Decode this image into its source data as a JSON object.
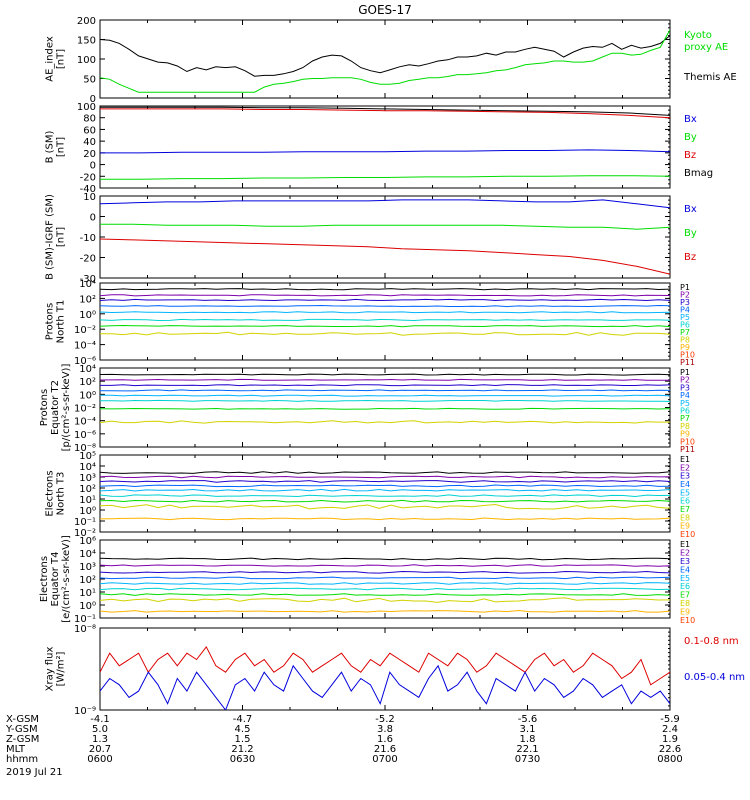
{
  "title": "GOES-17",
  "colors": {
    "black": "#000000",
    "blue": "#0000dd",
    "green": "#00dd00",
    "red": "#dd0000",
    "P": [
      "#000000",
      "#7f00aa",
      "#2200cc",
      "#0066ff",
      "#00b4ff",
      "#00d2d2",
      "#00dc00",
      "#d2d200",
      "#ffb400",
      "#ff3c00",
      "#aa0000"
    ]
  },
  "chart_data": [
    {
      "type": "line",
      "ylabel": [
        "AE_index",
        "[nT]"
      ],
      "yticks": [
        "200",
        "150",
        "100",
        "50",
        "0"
      ],
      "ylim": [
        0,
        200
      ],
      "legend": [
        {
          "label": "Kyoto",
          "color": "green"
        },
        {
          "label": "proxy AE",
          "color": "green"
        },
        {
          "label": "Themis AE",
          "color": "black"
        }
      ],
      "series": [
        {
          "name": "Themis AE",
          "color": "black",
          "values": [
            150,
            148,
            140,
            125,
            108,
            100,
            92,
            90,
            82,
            68,
            78,
            72,
            80,
            78,
            80,
            70,
            56,
            58,
            58,
            62,
            68,
            78,
            95,
            105,
            110,
            108,
            95,
            78,
            70,
            65,
            72,
            80,
            85,
            82,
            88,
            95,
            98,
            105,
            105,
            108,
            115,
            110,
            118,
            118,
            125,
            130,
            125,
            120,
            105,
            118,
            128,
            132,
            130,
            140,
            125,
            135,
            128,
            132,
            140,
            160
          ]
        },
        {
          "name": "Kyoto proxy AE",
          "color": "green",
          "values": [
            52,
            48,
            35,
            25,
            15,
            15,
            15,
            15,
            15,
            15,
            15,
            15,
            15,
            15,
            15,
            15,
            15,
            28,
            35,
            38,
            42,
            48,
            50,
            50,
            52,
            52,
            52,
            48,
            40,
            35,
            35,
            38,
            45,
            48,
            52,
            52,
            55,
            60,
            60,
            62,
            65,
            70,
            72,
            78,
            85,
            88,
            90,
            95,
            95,
            92,
            92,
            95,
            105,
            115,
            115,
            110,
            112,
            122,
            130,
            175
          ]
        }
      ]
    },
    {
      "type": "line",
      "ylabel": [
        "B (SM)",
        "[nT]"
      ],
      "yticks": [
        "100",
        "80",
        "60",
        "40",
        "20",
        "0",
        "-20",
        "-40"
      ],
      "ylim": [
        -40,
        100
      ],
      "legend": [
        {
          "label": "Bx",
          "color": "blue"
        },
        {
          "label": "By",
          "color": "green"
        },
        {
          "label": "Bz",
          "color": "red"
        },
        {
          "label": "Bmag",
          "color": "black"
        }
      ],
      "series": [
        {
          "name": "Bmag",
          "color": "black",
          "values": [
            98,
            98,
            98,
            98,
            97,
            97,
            96,
            95,
            94,
            93,
            92,
            91,
            90,
            88,
            84
          ]
        },
        {
          "name": "Bz",
          "color": "red",
          "values": [
            95,
            95,
            95,
            95,
            94,
            94,
            93,
            92,
            92,
            91,
            90,
            89,
            87,
            84,
            80
          ]
        },
        {
          "name": "Bx",
          "color": "blue",
          "values": [
            20,
            20,
            21,
            21,
            21,
            22,
            22,
            22,
            23,
            23,
            24,
            24,
            25,
            24,
            22
          ]
        },
        {
          "name": "By",
          "color": "green",
          "values": [
            -25,
            -25,
            -24,
            -24,
            -23,
            -23,
            -22,
            -22,
            -21,
            -21,
            -20,
            -20,
            -19,
            -19,
            -20
          ]
        }
      ]
    },
    {
      "type": "line",
      "ylabel": [
        "B (SM)-IGRF (SM)",
        "[nT]"
      ],
      "yticks": [
        "10",
        "0",
        "-10",
        "-20",
        "-30"
      ],
      "ylim": [
        -30,
        12
      ],
      "legend": [
        {
          "label": "Bx",
          "color": "blue"
        },
        {
          "label": "By",
          "color": "green"
        },
        {
          "label": "Bz",
          "color": "red"
        }
      ],
      "series": [
        {
          "name": "Bx",
          "color": "blue",
          "values": [
            8,
            8.5,
            9,
            9,
            9.5,
            9.5,
            9.5,
            9.5,
            9.5,
            10,
            10,
            10,
            9.5,
            9,
            9,
            10,
            8,
            6
          ]
        },
        {
          "name": "By",
          "color": "green",
          "values": [
            -2.5,
            -2.5,
            -3,
            -3,
            -3,
            -3.5,
            -3.5,
            -3,
            -3,
            -3,
            -3,
            -3,
            -3,
            -3.5,
            -4,
            -4,
            -5,
            -4
          ]
        },
        {
          "name": "Bz",
          "color": "red",
          "values": [
            -10,
            -10.5,
            -11,
            -11.5,
            -12,
            -12.5,
            -13,
            -13.5,
            -14,
            -15,
            -15.5,
            -16,
            -17,
            -18,
            -19,
            -21,
            -24,
            -28
          ]
        }
      ]
    },
    {
      "type": "line",
      "ylabel": [
        "Protons",
        "North T1"
      ],
      "yticks": [
        "10⁴",
        "10²",
        "10⁰",
        "10⁻²",
        "10⁻⁴",
        "10⁻⁶"
      ],
      "ylim": [
        -6,
        4
      ],
      "log": true,
      "channels": [
        "P1",
        "P2",
        "P3",
        "P4",
        "P5",
        "P6",
        "P7",
        "P8",
        "P9",
        "P10",
        "P11"
      ],
      "levels": [
        3.2,
        2.4,
        1.8,
        1.0,
        0.2,
        -0.8,
        -1.6,
        -2.6,
        null,
        null,
        null
      ]
    },
    {
      "type": "line",
      "ylabel": [
        "Protons",
        "Equator T2",
        "[p/(cm²-s-sr-keV)]"
      ],
      "yticks": [
        "10⁴",
        "10²",
        "10⁰",
        "10⁻²",
        "10⁻⁴",
        "10⁻⁶",
        "10⁻⁸"
      ],
      "ylim": [
        -8,
        4
      ],
      "log": true,
      "channels": [
        "P1",
        "P2",
        "P3",
        "P4",
        "P5",
        "P6",
        "P7",
        "P8",
        "P9",
        "P10",
        "P11"
      ],
      "levels": [
        3.0,
        2.2,
        1.4,
        0.6,
        -0.2,
        -1.0,
        -2.2,
        -4.2,
        null,
        null,
        null
      ]
    },
    {
      "type": "line",
      "ylabel": [
        "Electrons",
        "North T3"
      ],
      "yticks": [
        "10⁵",
        "10⁴",
        "10³",
        "10²",
        "10¹",
        "10⁰",
        "10⁻¹",
        "10⁻²"
      ],
      "ylim": [
        -2,
        5
      ],
      "log": true,
      "channels": [
        "E1",
        "E2",
        "E3",
        "E4",
        "E5",
        "E6",
        "E7",
        "E8",
        "E9",
        "E10"
      ],
      "levels": [
        3.4,
        3.0,
        2.6,
        2.2,
        1.8,
        1.3,
        0.8,
        0.3,
        -0.8,
        null
      ]
    },
    {
      "type": "line",
      "ylabel": [
        "Electrons",
        "Equator T4",
        "[e/(cm²-s-sr-keV)]"
      ],
      "yticks": [
        "10⁶",
        "10⁴",
        "10³",
        "10²",
        "10¹",
        "10⁰",
        "10⁻¹"
      ],
      "ylim": [
        -1,
        6
      ],
      "log": true,
      "channels": [
        "E1",
        "E2",
        "E3",
        "E4",
        "E5",
        "E6",
        "E7",
        "E8",
        "E9",
        "E10"
      ],
      "levels": [
        4.3,
        3.7,
        3.1,
        2.6,
        2.1,
        1.6,
        1.1,
        0.6,
        -0.4,
        null
      ]
    },
    {
      "type": "line",
      "ylabel": [
        "Xray flux",
        "[W/m²]"
      ],
      "yticks": [
        "10⁻⁸",
        "10⁻⁹"
      ],
      "ylim": [
        -9.2,
        -7.9
      ],
      "log": true,
      "legend": [
        {
          "label": "0.1-0.8 nm",
          "color": "red"
        },
        {
          "label": "0.05-0.4 nm",
          "color": "blue"
        }
      ],
      "series": [
        {
          "name": "0.1-0.8 nm",
          "color": "red",
          "values": [
            -8.6,
            -8.3,
            -8.5,
            -8.4,
            -8.3,
            -8.6,
            -8.4,
            -8.3,
            -8.5,
            -8.3,
            -8.4,
            -8.2,
            -8.5,
            -8.6,
            -8.4,
            -8.3,
            -8.5,
            -8.4,
            -8.6,
            -8.5,
            -8.3,
            -8.4,
            -8.6,
            -8.5,
            -8.4,
            -8.3,
            -8.5,
            -8.6,
            -8.4,
            -8.5,
            -8.3,
            -8.4,
            -8.5,
            -8.6,
            -8.3,
            -8.4,
            -8.5,
            -8.3,
            -8.4,
            -8.6,
            -8.5,
            -8.3,
            -8.4,
            -8.5,
            -8.6,
            -8.4,
            -8.3,
            -8.5,
            -8.4,
            -8.6,
            -8.5,
            -8.3,
            -8.4,
            -8.5,
            -8.7,
            -8.6,
            -8.4,
            -8.8,
            -8.7,
            -8.6
          ]
        },
        {
          "name": "0.05-0.4 nm",
          "color": "blue",
          "values": [
            -8.9,
            -8.7,
            -8.8,
            -9.0,
            -8.9,
            -8.6,
            -8.8,
            -9.1,
            -8.7,
            -8.9,
            -8.6,
            -8.8,
            -9.0,
            -9.2,
            -8.8,
            -8.7,
            -8.9,
            -8.6,
            -8.8,
            -8.9,
            -8.5,
            -8.7,
            -8.9,
            -9.0,
            -8.8,
            -8.6,
            -8.9,
            -8.7,
            -8.8,
            -9.1,
            -8.6,
            -8.8,
            -8.9,
            -9.0,
            -8.7,
            -8.5,
            -8.9,
            -8.8,
            -8.6,
            -8.9,
            -9.1,
            -8.7,
            -8.8,
            -8.9,
            -8.6,
            -8.9,
            -8.7,
            -8.8,
            -9.0,
            -8.9,
            -8.7,
            -8.8,
            -9.0,
            -8.9,
            -8.8,
            -9.1,
            -8.9,
            -9.0,
            -8.9,
            -9.1
          ]
        }
      ]
    }
  ],
  "x_axis": {
    "row_labels": [
      "X-GSM",
      "Y-GSM",
      "Z-GSM",
      "MLT",
      "hhmm"
    ],
    "date": "2019 Jul 21",
    "columns": [
      [
        "-4.1",
        "5.0",
        "1.3",
        "20.7",
        "0600"
      ],
      [
        "-4.7",
        "4.5",
        "1.5",
        "21.2",
        "0630"
      ],
      [
        "-5.2",
        "3.8",
        "1.6",
        "21.6",
        "0700"
      ],
      [
        "-5.6",
        "3.1",
        "1.8",
        "22.1",
        "0730"
      ],
      [
        "-5.9",
        "2.4",
        "1.9",
        "22.6",
        "0800"
      ]
    ]
  }
}
